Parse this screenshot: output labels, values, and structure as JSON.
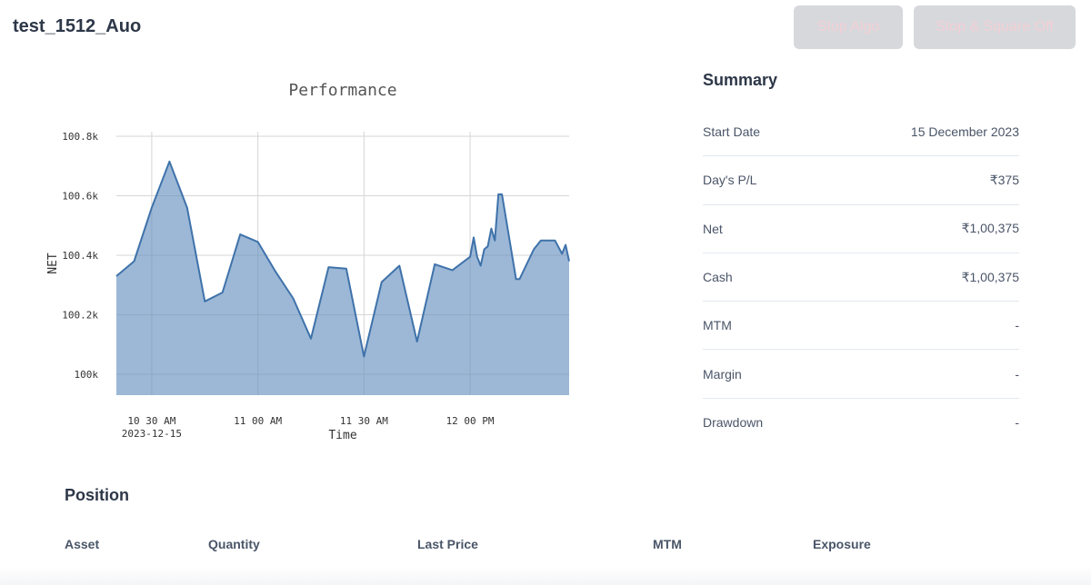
{
  "header": {
    "title": "test_1512_Auo",
    "stop_algo_label": "Stop Algo",
    "stop_square_off_label": "Stop & Square Off"
  },
  "colors": {
    "line": "#3f72aa",
    "fill": "#9cb8d6",
    "button_bg": "#d6d8dc",
    "button_text": "#f3d0d5"
  },
  "chart_data": {
    "type": "area",
    "title": "Performance",
    "xlabel": "Time",
    "ylabel": "NET",
    "grid": true,
    "ylim": [
      99930,
      100800
    ],
    "xlim": [
      "10:20",
      "12:28"
    ],
    "x_ticks": [
      {
        "x": "10:30",
        "label": "10 30 AM",
        "sublabel": "2023-12-15"
      },
      {
        "x": "11:00",
        "label": "11 00 AM",
        "sublabel": ""
      },
      {
        "x": "11:30",
        "label": "11 30 AM",
        "sublabel": ""
      },
      {
        "x": "12:00",
        "label": "12 00 PM",
        "sublabel": ""
      }
    ],
    "y_ticks": [
      {
        "y": 100000,
        "label": "100k"
      },
      {
        "y": 100200,
        "label": "100.2k"
      },
      {
        "y": 100400,
        "label": "100.4k"
      },
      {
        "y": 100600,
        "label": "100.6k"
      },
      {
        "y": 100800,
        "label": "100.8k"
      }
    ],
    "series": [
      {
        "x": [
          "10:20",
          "10:25",
          "10:30",
          "10:35",
          "10:40",
          "10:45",
          "10:50",
          "10:55",
          "11:00",
          "11:05",
          "11:10",
          "11:15",
          "11:20",
          "11:25",
          "11:30",
          "11:35",
          "11:40",
          "11:45",
          "11:50",
          "11:55",
          "12:00",
          "12:01",
          "12:02",
          "12:03",
          "12:04",
          "12:05",
          "12:06",
          "12:07",
          "12:08",
          "12:09",
          "12:13",
          "12:14",
          "12:18",
          "12:20",
          "12:24",
          "12:26",
          "12:27",
          "12:28"
        ],
        "values": [
          100330,
          100380,
          100560,
          100715,
          100560,
          100245,
          100275,
          100470,
          100445,
          100345,
          100255,
          100120,
          100360,
          100355,
          100060,
          100310,
          100365,
          100110,
          100370,
          100350,
          100395,
          100460,
          100395,
          100365,
          100420,
          100430,
          100490,
          100450,
          100605,
          100605,
          100320,
          100320,
          100420,
          100450,
          100450,
          100405,
          100435,
          100380
        ]
      }
    ]
  },
  "summary": {
    "title": "Summary",
    "rows": [
      {
        "label": "Start Date",
        "value": "15 December 2023"
      },
      {
        "label": "Day's P/L",
        "value": "₹375"
      },
      {
        "label": "Net",
        "value": "₹1,00,375"
      },
      {
        "label": "Cash",
        "value": "₹1,00,375"
      },
      {
        "label": "MTM",
        "value": "-"
      },
      {
        "label": "Margin",
        "value": "-"
      },
      {
        "label": "Drawdown",
        "value": "-"
      }
    ]
  },
  "position": {
    "title": "Position",
    "columns": [
      "Asset",
      "Quantity",
      "Last Price",
      "MTM",
      "Exposure"
    ]
  }
}
